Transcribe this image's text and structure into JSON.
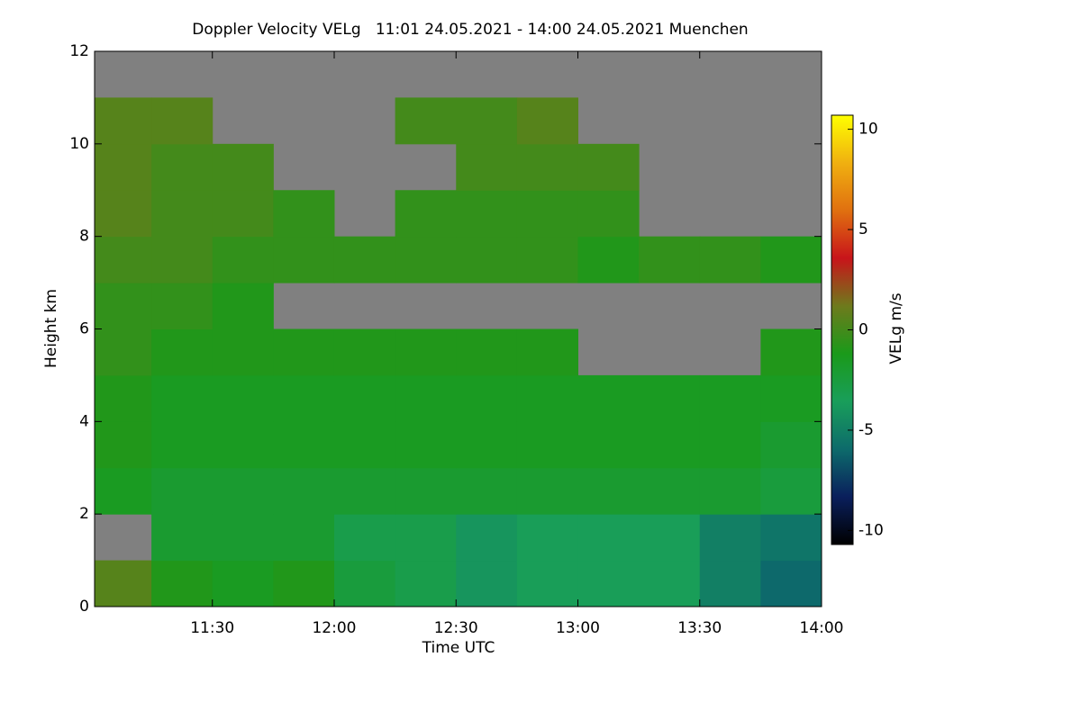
{
  "chart_data": {
    "type": "heatmap",
    "title": "Doppler Velocity VELg   11:01 24.05.2021 - 14:00 24.05.2021 Muenchen",
    "x_label": "Time UTC",
    "y_label": "Height km",
    "colorbar_label": "VELg m/s",
    "xlim": [
      11.0167,
      14.0
    ],
    "xticks": [
      {
        "value": 11.5,
        "label": "11:30"
      },
      {
        "value": 12.0,
        "label": "12:00"
      },
      {
        "value": 12.5,
        "label": "12:30"
      },
      {
        "value": 13.0,
        "label": "13:00"
      },
      {
        "value": 13.5,
        "label": "13:30"
      },
      {
        "value": 14.0,
        "label": "14:00"
      }
    ],
    "ylim": [
      0,
      12
    ],
    "yticks": [
      0,
      2,
      4,
      6,
      8,
      10,
      12
    ],
    "clim": [
      -10.7,
      10.7
    ],
    "cticks": [
      -10,
      -5,
      0,
      5,
      10
    ],
    "colormap": [
      "#000000",
      "#0a1f5c",
      "#0d6b6b",
      "#199e5a",
      "#1a9a1a",
      "#6e7a1c",
      "#c8141a",
      "#e07010",
      "#f0b010",
      "#ffff00"
    ],
    "background": "#808080",
    "x": [
      11.125,
      11.375,
      11.625,
      11.875,
      12.125,
      12.375,
      12.625,
      12.875,
      13.125,
      13.375,
      13.625,
      13.875
    ],
    "x_width": 0.25,
    "y": [
      0.5,
      1.5,
      2.5,
      3.5,
      4.5,
      5.5,
      6.5,
      7.5,
      8.5,
      9.5,
      10.5,
      11.5
    ],
    "y_width": 1,
    "z": [
      [
        0.5,
        -1,
        -1.5,
        -1,
        -2.5,
        -3,
        -4,
        -3.5,
        -3.5,
        -3.5,
        -5,
        -6
      ],
      [
        null,
        -2,
        -2,
        -2,
        -3,
        -3,
        -4,
        -3.5,
        -3.5,
        -3.5,
        -5,
        -5.5
      ],
      [
        -1.5,
        -2,
        -2,
        -2,
        -2,
        -2,
        -2,
        -2,
        -2,
        -2,
        -2,
        -2.5
      ],
      [
        -1,
        -1.5,
        -1.5,
        -1.5,
        -1.5,
        -1.5,
        -1.5,
        -1.5,
        -1.5,
        -1.5,
        -1.5,
        -2
      ],
      [
        -1,
        -1.5,
        -1.5,
        -1.5,
        -1.5,
        -1.5,
        -1.5,
        -1.5,
        -1.5,
        -1.5,
        -1.5,
        -1.5
      ],
      [
        -0.5,
        -1,
        -1,
        -1,
        -1,
        -1,
        -1,
        -1,
        null,
        null,
        null,
        -1
      ],
      [
        -0.5,
        -0.5,
        -1,
        null,
        null,
        null,
        null,
        null,
        null,
        null,
        null,
        null
      ],
      [
        0,
        0,
        -0.5,
        -0.5,
        -0.5,
        -0.5,
        -0.5,
        -0.5,
        -1,
        -0.5,
        -0.5,
        -1
      ],
      [
        0.5,
        0,
        0,
        -0.5,
        null,
        -0.5,
        -0.5,
        -0.5,
        -0.5,
        null,
        null,
        null
      ],
      [
        0.5,
        0,
        0,
        null,
        null,
        null,
        0,
        0,
        0,
        null,
        null,
        null
      ],
      [
        0.5,
        0.5,
        null,
        null,
        null,
        0,
        0,
        0.5,
        null,
        null,
        null,
        null
      ],
      [
        null,
        null,
        null,
        null,
        null,
        null,
        null,
        null,
        null,
        null,
        null,
        null
      ]
    ]
  }
}
